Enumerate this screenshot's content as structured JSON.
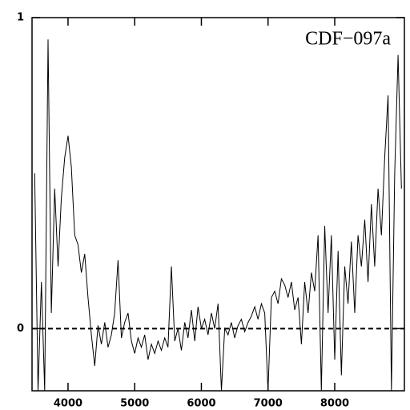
{
  "chart_data": {
    "type": "line",
    "annotation": "CDF−097a",
    "x": [
      3500,
      3550,
      3600,
      3650,
      3700,
      3750,
      3800,
      3850,
      3900,
      3950,
      4000,
      4050,
      4100,
      4150,
      4200,
      4250,
      4300,
      4350,
      4400,
      4450,
      4500,
      4550,
      4600,
      4650,
      4700,
      4750,
      4800,
      4850,
      4900,
      4950,
      5000,
      5050,
      5100,
      5150,
      5200,
      5250,
      5300,
      5350,
      5400,
      5450,
      5500,
      5550,
      5600,
      5650,
      5700,
      5750,
      5800,
      5850,
      5900,
      5950,
      6000,
      6050,
      6100,
      6150,
      6200,
      6250,
      6300,
      6350,
      6400,
      6450,
      6500,
      6550,
      6600,
      6650,
      6700,
      6750,
      6800,
      6850,
      6900,
      6950,
      7000,
      7050,
      7100,
      7150,
      7200,
      7250,
      7300,
      7350,
      7400,
      7450,
      7500,
      7550,
      7600,
      7650,
      7700,
      7750,
      7800,
      7850,
      7900,
      7950,
      8000,
      8050,
      8100,
      8150,
      8200,
      8250,
      8300,
      8350,
      8400,
      8450,
      8500,
      8550,
      8600,
      8650,
      8700,
      8750,
      8800,
      8850,
      8900,
      8950,
      9000
    ],
    "values": [
      0.5,
      -0.2,
      0.15,
      -0.2,
      0.93,
      0.05,
      0.45,
      0.2,
      0.42,
      0.55,
      0.62,
      0.52,
      0.3,
      0.27,
      0.18,
      0.24,
      0.1,
      -0.02,
      -0.12,
      0.01,
      -0.05,
      0.02,
      -0.06,
      -0.02,
      0.05,
      0.22,
      -0.03,
      0.02,
      0.05,
      -0.04,
      -0.08,
      -0.03,
      -0.06,
      -0.02,
      -0.1,
      -0.05,
      -0.08,
      -0.04,
      -0.07,
      -0.03,
      -0.06,
      0.2,
      -0.04,
      0.0,
      -0.07,
      0.02,
      -0.03,
      0.06,
      -0.04,
      0.07,
      0.0,
      0.03,
      -0.02,
      0.05,
      0.0,
      0.08,
      -0.2,
      0.0,
      -0.02,
      0.02,
      -0.03,
      0.01,
      0.03,
      -0.01,
      0.02,
      0.04,
      0.07,
      0.03,
      0.08,
      0.05,
      -0.2,
      0.1,
      0.12,
      0.08,
      0.16,
      0.14,
      0.1,
      0.15,
      0.06,
      0.1,
      -0.05,
      0.15,
      0.05,
      0.18,
      0.12,
      0.3,
      -0.2,
      0.33,
      0.05,
      0.3,
      -0.1,
      0.25,
      -0.15,
      0.2,
      0.08,
      0.28,
      0.05,
      0.3,
      0.2,
      0.35,
      0.15,
      0.4,
      0.2,
      0.45,
      0.3,
      0.55,
      0.75,
      -0.2,
      0.5,
      0.88,
      0.45
    ],
    "color": "#000000",
    "xlim": [
      3460,
      9045
    ],
    "xticks": [
      4000,
      5000,
      6000,
      7000,
      8000
    ],
    "ylim": [
      -0.2,
      1
    ],
    "yticks": [
      0,
      1
    ],
    "reference_line": 0
  }
}
